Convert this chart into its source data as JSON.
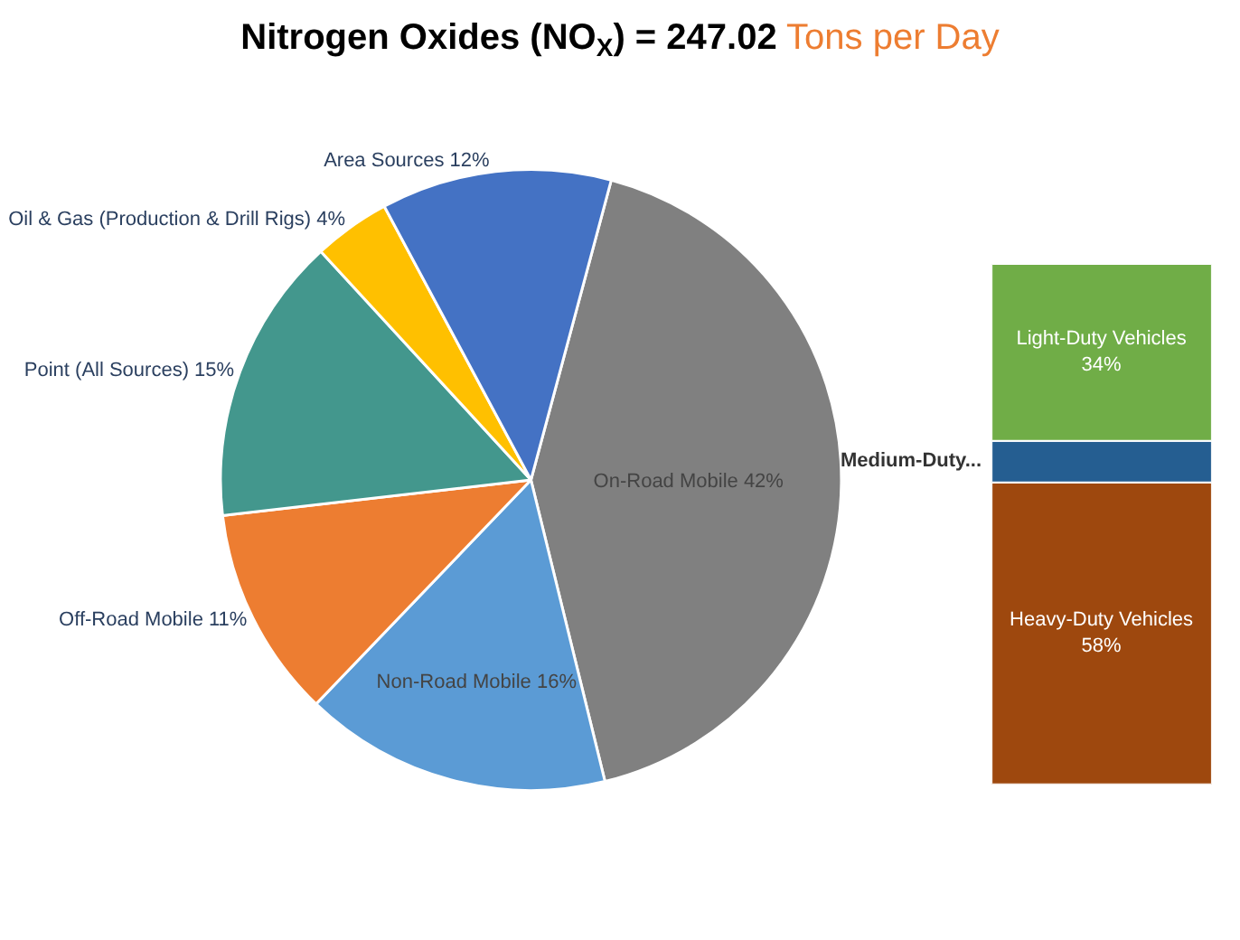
{
  "chart_data": [
    {
      "type": "pie",
      "title": "Nitrogen Oxides (NO$_{X}$) = 247.02",
      "subtitle": "Tons per Day",
      "categories": [
        "On-Road Mobile",
        "Non-Road Mobile",
        "Off-Road Mobile",
        "Point (All Sources)",
        "Oil & Gas (Production & Drill Rigs)",
        "Area Sources"
      ],
      "values": [
        42,
        16,
        11,
        15,
        4,
        12
      ],
      "value_labels": [
        "42%",
        "16%",
        "11%",
        "15%",
        "4%",
        "12%"
      ],
      "colors": [
        "#808080",
        "#5b9bd5",
        "#ed7d31",
        "#43978d",
        "#ffc000",
        "#4472c4"
      ],
      "legend": false
    },
    {
      "type": "bar",
      "stacked": true,
      "categories": [
        null
      ],
      "series": [
        {
          "name": "Heavy-Duty Vehicles",
          "color": "#9e480e",
          "values": [
            58
          ],
          "value_labels": [
            "58%"
          ]
        },
        {
          "name": "Medium-Duty...",
          "color": "#255e91",
          "values": [
            8
          ],
          "value_labels": [
            null
          ]
        },
        {
          "name": "Light-Duty Vehicles",
          "color": "#70ad47",
          "values": [
            34
          ],
          "value_labels": [
            "34%"
          ]
        }
      ],
      "legend": false
    }
  ]
}
